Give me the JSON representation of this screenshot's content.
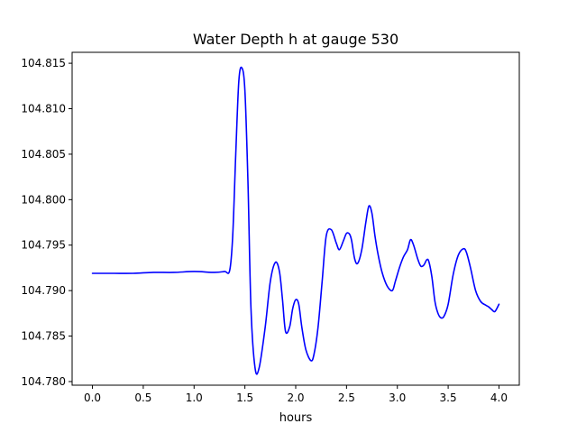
{
  "chart_data": {
    "type": "line",
    "title": "Water Depth h at gauge 530",
    "xlabel": "hours",
    "ylabel": "",
    "xlim": [
      -0.2,
      4.2
    ],
    "ylim": [
      104.7796,
      104.8162
    ],
    "xticks": [
      0.0,
      0.5,
      1.0,
      1.5,
      2.0,
      2.5,
      3.0,
      3.5,
      4.0
    ],
    "xtick_labels": [
      "0.0",
      "0.5",
      "1.0",
      "1.5",
      "2.0",
      "2.5",
      "3.0",
      "3.5",
      "4.0"
    ],
    "yticks": [
      104.78,
      104.785,
      104.79,
      104.795,
      104.8,
      104.805,
      104.81,
      104.815
    ],
    "ytick_labels": [
      "104.780",
      "104.785",
      "104.790",
      "104.795",
      "104.800",
      "104.805",
      "104.810",
      "104.815"
    ],
    "grid": false,
    "series": [
      {
        "name": "",
        "color": "#0000ff",
        "x": [
          0.0,
          0.2,
          0.4,
          0.6,
          0.8,
          1.0,
          1.2,
          1.3,
          1.35,
          1.38,
          1.41,
          1.44,
          1.47,
          1.5,
          1.53,
          1.56,
          1.6,
          1.64,
          1.7,
          1.75,
          1.8,
          1.84,
          1.87,
          1.9,
          1.94,
          1.97,
          2.0,
          2.03,
          2.06,
          2.1,
          2.15,
          2.18,
          2.22,
          2.26,
          2.3,
          2.35,
          2.4,
          2.43,
          2.47,
          2.5,
          2.53,
          2.55,
          2.58,
          2.61,
          2.65,
          2.69,
          2.72,
          2.75,
          2.78,
          2.81,
          2.85,
          2.9,
          2.95,
          2.98,
          3.02,
          3.06,
          3.1,
          3.13,
          3.16,
          3.2,
          3.23,
          3.26,
          3.29,
          3.31,
          3.34,
          3.37,
          3.4,
          3.43,
          3.46,
          3.5,
          3.55,
          3.6,
          3.65,
          3.68,
          3.72,
          3.77,
          3.82,
          3.87,
          3.9,
          3.93,
          3.96,
          4.0
        ],
        "y": [
          104.7919,
          104.7919,
          104.7919,
          104.792,
          104.792,
          104.7921,
          104.792,
          104.7921,
          104.7922,
          104.796,
          104.805,
          104.813,
          104.8145,
          104.812,
          104.802,
          104.788,
          104.7815,
          104.7815,
          104.786,
          104.791,
          104.7931,
          104.7921,
          104.789,
          104.7855,
          104.786,
          104.788,
          104.789,
          104.7885,
          104.786,
          104.7835,
          104.7823,
          104.783,
          104.786,
          104.791,
          104.796,
          104.7967,
          104.7952,
          104.7945,
          104.7955,
          104.7963,
          104.7962,
          104.7955,
          104.7935,
          104.793,
          104.7945,
          104.7975,
          104.7993,
          104.7985,
          104.796,
          104.794,
          104.792,
          104.7905,
          104.79,
          104.791,
          104.7925,
          104.7937,
          104.7945,
          104.7956,
          104.795,
          104.7935,
          104.7927,
          104.7928,
          104.7934,
          104.7932,
          104.7915,
          104.7888,
          104.7875,
          104.787,
          104.7872,
          104.7885,
          104.7918,
          104.7939,
          104.7946,
          104.7942,
          104.7925,
          104.79,
          104.7888,
          104.7884,
          104.7882,
          104.7879,
          104.7877,
          104.7885
        ]
      }
    ]
  }
}
